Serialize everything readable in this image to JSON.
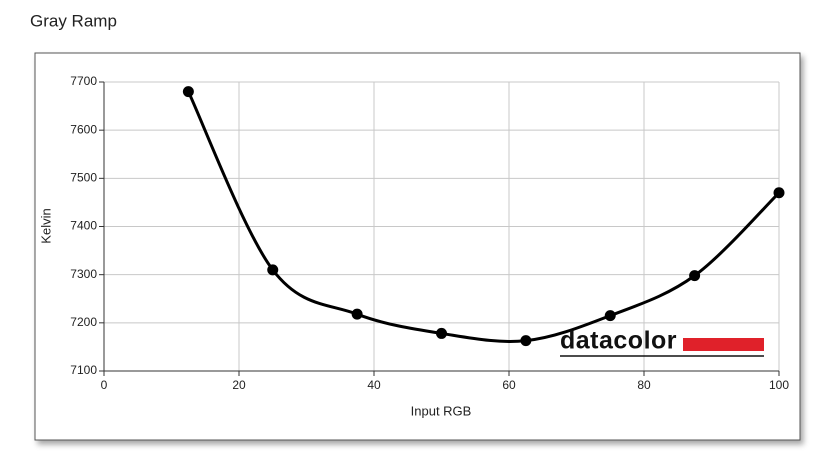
{
  "chart_data": {
    "type": "line",
    "title": "Gray Ramp",
    "x_label": "Input RGB",
    "y_label": "Kelvin",
    "x": [
      12.5,
      25,
      37.5,
      50,
      62.5,
      75,
      87.5,
      100
    ],
    "series": [
      {
        "name": "Kelvin",
        "color": "#000000",
        "values": [
          7680,
          7310,
          7218,
          7178,
          7163,
          7215,
          7298,
          7470
        ]
      }
    ],
    "xlim": [
      0,
      100
    ],
    "xticks": [
      0,
      20,
      40,
      60,
      80,
      100
    ],
    "ylim": [
      7100,
      7700
    ],
    "yticks": [
      7100,
      7200,
      7300,
      7400,
      7500,
      7600,
      7700
    ],
    "grid": true,
    "smooth": true,
    "watermark": "datacolor"
  }
}
